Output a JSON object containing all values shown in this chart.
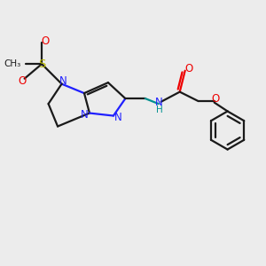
{
  "bg_color": "#ececec",
  "bond_color": "#1a1a1a",
  "N_color": "#2020ff",
  "O_color": "#ee0000",
  "S_color": "#bbbb00",
  "NH_color": "#009090",
  "line_width": 1.6,
  "fig_size": [
    3.0,
    3.0
  ],
  "dpi": 100,
  "xlim": [
    0,
    10
  ],
  "ylim": [
    0,
    10
  ]
}
